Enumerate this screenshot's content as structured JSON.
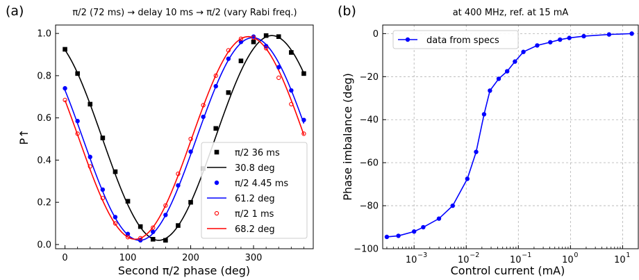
{
  "panels": {
    "a": {
      "label": "(a)"
    },
    "b": {
      "label": "(b)"
    }
  },
  "chart_data": [
    {
      "type": "scatter",
      "panel": "(a)",
      "title": "π/2 (72 ms) → delay 10 ms → π/2 (vary Rabi freq.)",
      "xlabel": "Second π/2 phase (deg)",
      "ylabel": "P↑",
      "xlim": [
        -15,
        395
      ],
      "ylim": [
        -0.02,
        1.04
      ],
      "xticks": [
        0,
        100,
        200,
        300
      ],
      "yticks": [
        0.0,
        0.2,
        0.4,
        0.6,
        0.8,
        1.0
      ],
      "grid": false,
      "legend_position": "lower-right",
      "series": [
        {
          "name": "π/2 36 ms",
          "kind": "points",
          "marker": "square",
          "color": "#000000",
          "x": [
            0,
            20,
            40,
            60,
            80,
            100,
            120,
            140,
            160,
            180,
            200,
            220,
            240,
            260,
            280,
            300,
            320,
            340,
            360,
            380
          ],
          "y": [
            0.925,
            0.81,
            0.665,
            0.505,
            0.345,
            0.205,
            0.085,
            0.025,
            0.02,
            0.09,
            0.2,
            0.36,
            0.55,
            0.72,
            0.87,
            0.96,
            0.99,
            0.985,
            0.91,
            0.81
          ]
        },
        {
          "name": "30.8 deg",
          "kind": "fit",
          "color": "#000000",
          "shift_deg": 30.8,
          "amplitude": 0.485,
          "offset": 0.505
        },
        {
          "name": "π/2 4.45 ms",
          "kind": "points",
          "marker": "dot",
          "color": "#0000ff",
          "x": [
            0,
            20,
            40,
            60,
            80,
            100,
            120,
            140,
            160,
            180,
            200,
            220,
            240,
            260,
            280,
            300,
            320,
            340,
            360,
            380
          ],
          "y": [
            0.74,
            0.585,
            0.415,
            0.26,
            0.13,
            0.05,
            0.02,
            0.06,
            0.14,
            0.28,
            0.44,
            0.605,
            0.75,
            0.88,
            0.96,
            0.985,
            0.94,
            0.84,
            0.73,
            0.59
          ]
        },
        {
          "name": "61.2 deg",
          "kind": "fit",
          "color": "#0000ff",
          "shift_deg": 61.2,
          "amplitude": 0.48,
          "offset": 0.5
        },
        {
          "name": "π/2 1 ms",
          "kind": "points",
          "marker": "open-circle",
          "color": "#ff0000",
          "x": [
            0,
            20,
            40,
            60,
            80,
            100,
            120,
            140,
            160,
            180,
            200,
            220,
            240,
            260,
            280,
            300,
            320,
            340,
            360,
            380
          ],
          "y": [
            0.685,
            0.525,
            0.37,
            0.22,
            0.1,
            0.035,
            0.03,
            0.08,
            0.185,
            0.335,
            0.5,
            0.66,
            0.8,
            0.92,
            0.975,
            0.98,
            0.93,
            0.79,
            0.665,
            0.525
          ]
        },
        {
          "name": "68.2 deg",
          "kind": "fit",
          "color": "#ff0000",
          "shift_deg": 68.2,
          "amplitude": 0.48,
          "offset": 0.505
        }
      ]
    },
    {
      "type": "line",
      "panel": "(b)",
      "title": "at 400 MHz, ref. at 15 mA",
      "xlabel": "Control current (mA)",
      "ylabel": "Phase imbalance (deg)",
      "xscale": "log",
      "xlim": [
        0.00025,
        20
      ],
      "ylim": [
        -100,
        4
      ],
      "xticks": [
        0.001,
        0.01,
        0.1,
        1,
        10
      ],
      "xticklabels": [
        "10",
        "10",
        "10",
        "10",
        "10"
      ],
      "xtick_exponents": [
        "−3",
        "−2",
        "−1",
        "0",
        "1"
      ],
      "yticks": [
        0,
        -20,
        -40,
        -60,
        -80,
        -100
      ],
      "yticklabels": [
        "0",
        "−20",
        "−40",
        "−60",
        "−80",
        "−100"
      ],
      "grid": true,
      "legend_position": "top-left",
      "series": [
        {
          "name": "data from specs",
          "color": "#0000ff",
          "marker": "dot",
          "x": [
            0.0003,
            0.0005,
            0.001,
            0.0015,
            0.003,
            0.0055,
            0.0105,
            0.0155,
            0.022,
            0.0285,
            0.042,
            0.061,
            0.086,
            0.125,
            0.23,
            0.41,
            0.63,
            0.95,
            1.8,
            5.5,
            15
          ],
          "y": [
            -94.5,
            -94,
            -92,
            -90,
            -86,
            -80,
            -67.5,
            -55,
            -37.5,
            -26.5,
            -21,
            -17.5,
            -13,
            -8.5,
            -5.5,
            -4,
            -2.8,
            -2,
            -1.2,
            -0.4,
            0
          ]
        }
      ]
    }
  ]
}
